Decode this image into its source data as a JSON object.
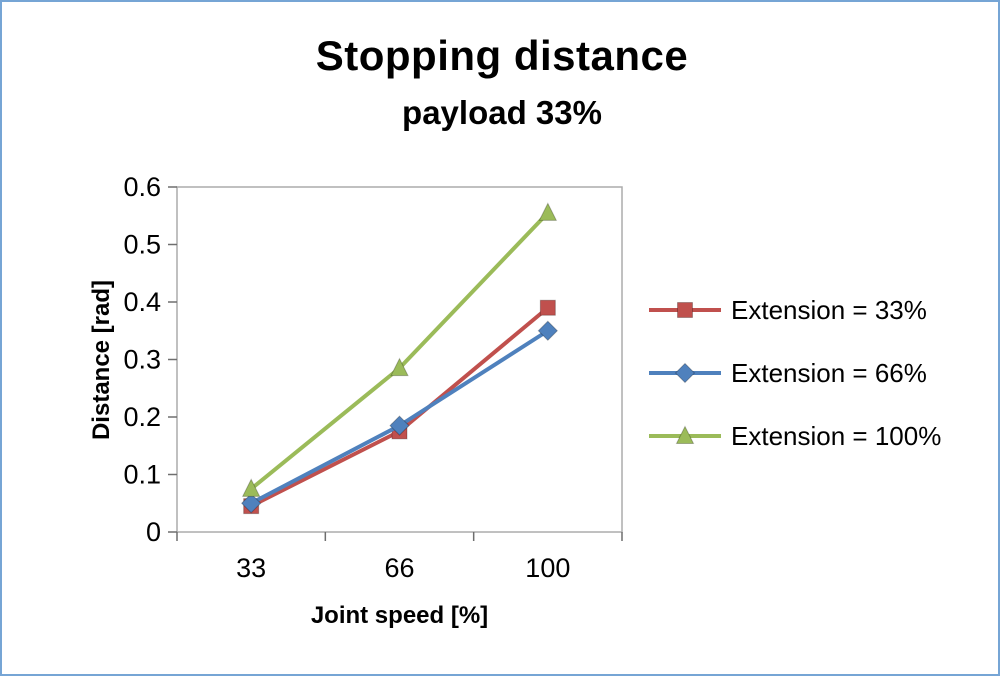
{
  "chart_data": {
    "type": "line",
    "title": "Stopping distance",
    "subtitle": "payload 33%",
    "xlabel": "Joint speed [%]",
    "ylabel": "Distance [rad]",
    "categories": [
      "33",
      "66",
      "100"
    ],
    "ylim": [
      0,
      0.6
    ],
    "yticks": [
      0,
      0.1,
      0.2,
      0.3,
      0.4,
      0.5,
      0.6
    ],
    "grid": false,
    "legend_position": "right",
    "series": [
      {
        "name": "Extension = 33%",
        "color": "#C0504D",
        "marker": "square",
        "values": [
          0.045,
          0.175,
          0.39
        ]
      },
      {
        "name": "Extension = 66%",
        "color": "#4F81BD",
        "marker": "diamond",
        "values": [
          0.05,
          0.185,
          0.35
        ]
      },
      {
        "name": "Extension = 100%",
        "color": "#9BBB59",
        "marker": "triangle",
        "values": [
          0.075,
          0.285,
          0.555
        ]
      }
    ]
  },
  "colors": {
    "frame": "#76A5D5",
    "plot_border": "#ACACAC",
    "tick": "#6E6E6E",
    "axis_text": "#000000"
  }
}
